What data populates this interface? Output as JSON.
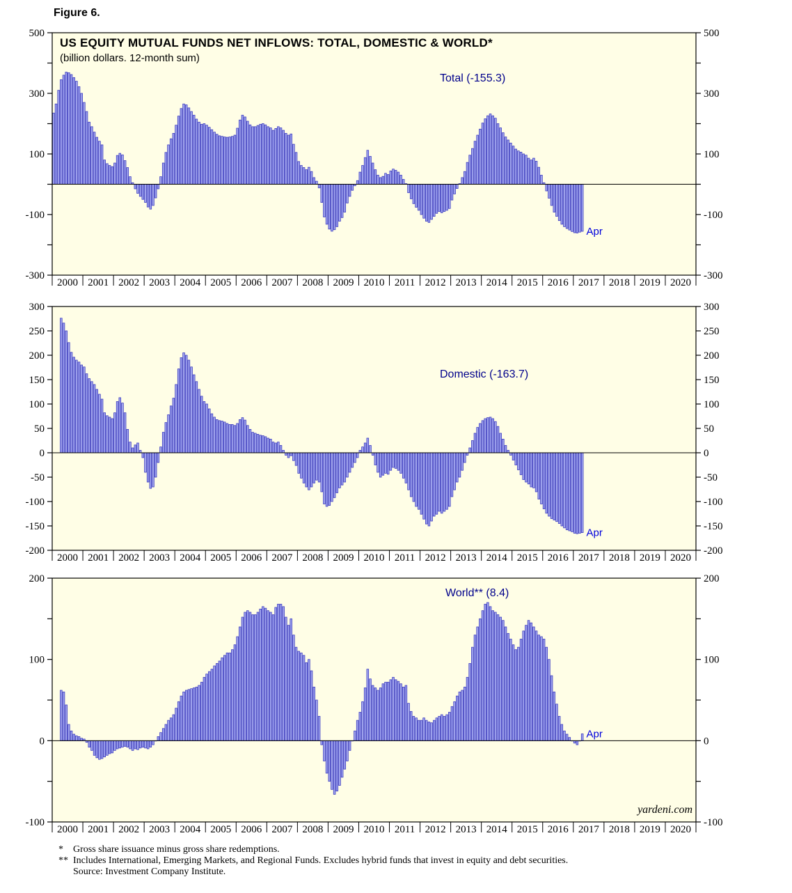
{
  "figure_label": "Figure 6.",
  "title": "US EQUITY MUTUAL FUNDS NET INFLOWS: TOTAL, DOMESTIC & WORLD*",
  "subtitle": "(billion dollars. 12-month sum)",
  "watermark": "yardeni.com",
  "footnotes": [
    {
      "marker": "*",
      "text": "Gross share issuance minus gross share redemptions."
    },
    {
      "marker": "**",
      "text": "Includes International, Emerging Markets, and Regional Funds. Excludes hybrid funds that invest in equity and debt securities."
    },
    {
      "marker": "",
      "text": "Source: Investment Company Institute."
    }
  ],
  "colors": {
    "plot_bg": "#fffee6",
    "bar_fill": "#a3a7ef",
    "bar_edge": "#3b3bc0",
    "axis": "#000000",
    "annotation_blue": "#0000dd",
    "series_label_blue": "#00008b"
  },
  "chart_data": [
    {
      "type": "bar",
      "series_label": "Total (-155.3)",
      "last_value_label": "Apr",
      "last_value": -155.3,
      "ylim": [
        -300,
        500
      ],
      "ytick_step": 100,
      "ylabel_step": 200,
      "x_start": "2000-01",
      "x_axis_end": "2020-12",
      "years": [
        2000,
        2001,
        2002,
        2003,
        2004,
        2005,
        2006,
        2007,
        2008,
        2009,
        2010,
        2011,
        2012,
        2013,
        2014,
        2015,
        2016,
        2017,
        2018,
        2019,
        2020
      ],
      "values": [
        235,
        265,
        310,
        345,
        360,
        370,
        368,
        362,
        352,
        340,
        322,
        300,
        270,
        240,
        205,
        190,
        172,
        155,
        142,
        130,
        80,
        68,
        62,
        58,
        70,
        95,
        102,
        97,
        78,
        55,
        25,
        5,
        -15,
        -30,
        -40,
        -50,
        -60,
        -75,
        -82,
        -70,
        -45,
        -15,
        25,
        70,
        105,
        130,
        150,
        168,
        195,
        225,
        250,
        265,
        262,
        252,
        240,
        228,
        215,
        205,
        198,
        200,
        195,
        188,
        180,
        172,
        165,
        160,
        158,
        156,
        155,
        156,
        158,
        162,
        185,
        212,
        228,
        222,
        208,
        196,
        190,
        190,
        194,
        198,
        200,
        196,
        190,
        186,
        178,
        184,
        190,
        186,
        178,
        168,
        162,
        166,
        132,
        105,
        75,
        62,
        55,
        48,
        56,
        42,
        22,
        10,
        -12,
        -60,
        -108,
        -132,
        -148,
        -155,
        -150,
        -140,
        -122,
        -110,
        -92,
        -62,
        -40,
        -20,
        -5,
        12,
        40,
        62,
        88,
        112,
        92,
        70,
        48,
        30,
        22,
        26,
        36,
        32,
        44,
        50,
        46,
        40,
        30,
        16,
        2,
        -28,
        -48,
        -64,
        -76,
        -86,
        -100,
        -112,
        -122,
        -126,
        -116,
        -106,
        -96,
        -90,
        -94,
        -90,
        -86,
        -80,
        -52,
        -32,
        -14,
        2,
        22,
        42,
        72,
        96,
        118,
        142,
        162,
        182,
        202,
        216,
        226,
        232,
        226,
        218,
        200,
        186,
        170,
        156,
        146,
        136,
        126,
        116,
        110,
        106,
        100,
        96,
        86,
        80,
        86,
        76,
        56,
        30,
        5,
        -22,
        -46,
        -70,
        -92,
        -106,
        -120,
        -132,
        -140,
        -146,
        -151,
        -156,
        -160,
        -161,
        -158,
        -155.3
      ]
    },
    {
      "type": "bar",
      "series_label": "Domestic (-163.7)",
      "last_value_label": "Apr",
      "last_value": -163.7,
      "ylim": [
        -200,
        300
      ],
      "ytick_step": 50,
      "ylabel_step": 50,
      "x_start": "2000-01",
      "x_axis_end": "2020-12",
      "years": [
        2000,
        2001,
        2002,
        2003,
        2004,
        2005,
        2006,
        2007,
        2008,
        2009,
        2010,
        2011,
        2012,
        2013,
        2014,
        2015,
        2016,
        2017,
        2018,
        2019,
        2020
      ],
      "values": [
        null,
        null,
        null,
        276,
        266,
        250,
        226,
        206,
        196,
        190,
        186,
        180,
        176,
        162,
        152,
        146,
        140,
        130,
        120,
        110,
        82,
        76,
        73,
        70,
        82,
        105,
        113,
        102,
        82,
        48,
        22,
        10,
        16,
        20,
        5,
        -10,
        -40,
        -60,
        -73,
        -70,
        -50,
        -20,
        12,
        42,
        62,
        78,
        96,
        112,
        140,
        172,
        195,
        205,
        200,
        190,
        176,
        160,
        146,
        130,
        116,
        105,
        100,
        90,
        80,
        73,
        68,
        66,
        65,
        63,
        60,
        58,
        58,
        56,
        60,
        68,
        72,
        67,
        56,
        48,
        42,
        40,
        38,
        36,
        35,
        33,
        30,
        28,
        22,
        20,
        22,
        15,
        5,
        -5,
        -10,
        -6,
        -16,
        -26,
        -42,
        -52,
        -62,
        -70,
        -76,
        -70,
        -62,
        -56,
        -60,
        -80,
        -105,
        -110,
        -108,
        -100,
        -92,
        -82,
        -72,
        -66,
        -60,
        -50,
        -40,
        -30,
        -20,
        -10,
        5,
        12,
        20,
        30,
        15,
        -5,
        -25,
        -40,
        -50,
        -46,
        -42,
        -44,
        -36,
        -30,
        -32,
        -36,
        -42,
        -52,
        -62,
        -76,
        -90,
        -100,
        -110,
        -116,
        -126,
        -136,
        -146,
        -150,
        -140,
        -130,
        -126,
        -120,
        -124,
        -120,
        -116,
        -110,
        -90,
        -76,
        -60,
        -50,
        -36,
        -20,
        -5,
        10,
        25,
        40,
        52,
        60,
        66,
        70,
        72,
        73,
        70,
        64,
        54,
        40,
        28,
        15,
        5,
        -5,
        -15,
        -25,
        -35,
        -45,
        -55,
        -60,
        -64,
        -70,
        -72,
        -80,
        -95,
        -105,
        -115,
        -124,
        -130,
        -135,
        -138,
        -141,
        -145,
        -150,
        -154,
        -158,
        -160,
        -162,
        -165,
        -166,
        -165,
        -163.7
      ]
    },
    {
      "type": "bar",
      "series_label": "World** (8.4)",
      "last_value_label": "Apr",
      "last_value": 8.4,
      "ylim": [
        -100,
        200
      ],
      "ytick_step": 50,
      "ylabel_step": 100,
      "x_start": "2000-01",
      "x_axis_end": "2020-12",
      "years": [
        2000,
        2001,
        2002,
        2003,
        2004,
        2005,
        2006,
        2007,
        2008,
        2009,
        2010,
        2011,
        2012,
        2013,
        2014,
        2015,
        2016,
        2017,
        2018,
        2019,
        2020
      ],
      "values": [
        null,
        null,
        null,
        62,
        60,
        44,
        20,
        12,
        8,
        6,
        5,
        3,
        2,
        -2,
        -8,
        -12,
        -18,
        -21,
        -23,
        -22,
        -20,
        -18,
        -16,
        -15,
        -12,
        -10,
        -9,
        -8,
        -7,
        -8,
        -10,
        -12,
        -10,
        -11,
        -9,
        -8,
        -9,
        -10,
        -8,
        -5,
        0,
        5,
        10,
        15,
        20,
        25,
        28,
        32,
        40,
        48,
        55,
        60,
        62,
        63,
        64,
        65,
        66,
        68,
        72,
        78,
        82,
        85,
        88,
        92,
        95,
        98,
        102,
        105,
        108,
        108,
        112,
        118,
        128,
        140,
        152,
        158,
        160,
        158,
        155,
        155,
        158,
        162,
        165,
        163,
        160,
        158,
        155,
        164,
        168,
        168,
        165,
        152,
        142,
        150,
        130,
        115,
        110,
        108,
        105,
        96,
        100,
        86,
        66,
        50,
        30,
        -5,
        -25,
        -40,
        -50,
        -60,
        -66,
        -62,
        -55,
        -45,
        -35,
        -25,
        -12,
        0,
        12,
        25,
        35,
        48,
        65,
        88,
        76,
        68,
        65,
        62,
        65,
        70,
        72,
        72,
        75,
        78,
        75,
        73,
        70,
        66,
        68,
        46,
        36,
        30,
        28,
        25,
        25,
        28,
        25,
        23,
        22,
        25,
        28,
        30,
        32,
        30,
        32,
        35,
        42,
        48,
        55,
        60,
        62,
        66,
        78,
        95,
        115,
        130,
        140,
        150,
        160,
        168,
        170,
        165,
        160,
        158,
        155,
        152,
        148,
        140,
        132,
        125,
        118,
        112,
        115,
        125,
        135,
        142,
        148,
        145,
        140,
        135,
        130,
        128,
        125,
        115,
        100,
        80,
        60,
        45,
        30,
        20,
        12,
        8,
        4,
        0,
        -3,
        -5,
        0,
        8.4
      ]
    }
  ]
}
